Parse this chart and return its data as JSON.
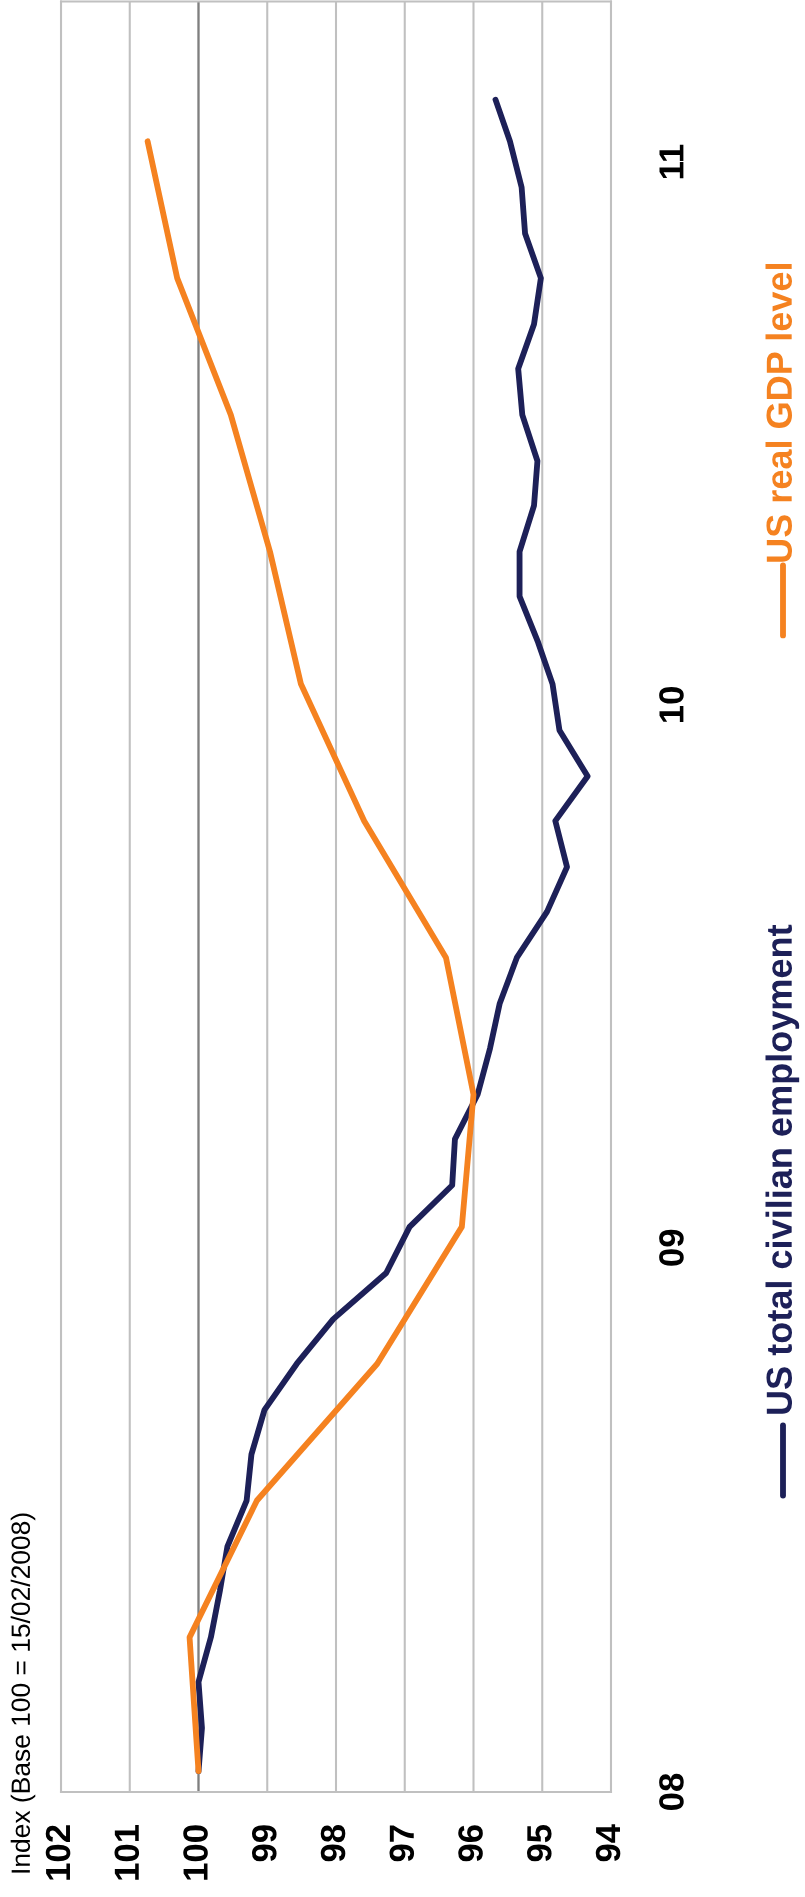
{
  "chart_data": {
    "type": "line",
    "orientation": "horizontal",
    "annotations": [
      "Index (Base 100 = 15/02/2008)"
    ],
    "xlim": [
      102,
      94
    ],
    "xticks": [
      102,
      101,
      100,
      99,
      98,
      97,
      96,
      95,
      94
    ],
    "ylim": [
      "2008-02-01",
      "2011-05-20"
    ],
    "yticks": [
      {
        "value": "2008-02-01",
        "label": "08"
      },
      {
        "value": "2009-02-01",
        "label": "09"
      },
      {
        "value": "2010-02-01",
        "label": "10"
      },
      {
        "value": "2011-02-01",
        "label": "11"
      }
    ],
    "grid": "x",
    "legend": "right",
    "line_style": "solid",
    "marker": "none",
    "ref_lines": [
      {
        "axis": "x",
        "value": 100,
        "color": "#7f7f7f"
      }
    ],
    "series": [
      {
        "name": "US total civilian employment",
        "color": "#1d2058",
        "x": [
          "2008-02-15",
          "2008-03-15",
          "2008-04-15",
          "2008-05-15",
          "2008-06-15",
          "2008-07-15",
          "2008-08-15",
          "2008-09-15",
          "2008-10-15",
          "2008-11-15",
          "2008-12-15",
          "2009-01-15",
          "2009-02-15",
          "2009-03-15",
          "2009-04-15",
          "2009-05-15",
          "2009-06-15",
          "2009-07-15",
          "2009-08-15",
          "2009-09-15",
          "2009-10-15",
          "2009-11-15",
          "2009-12-15",
          "2010-01-15",
          "2010-02-15",
          "2010-03-15",
          "2010-04-15",
          "2010-05-15",
          "2010-06-15",
          "2010-07-15",
          "2010-08-15",
          "2010-09-15",
          "2010-10-15",
          "2010-11-15",
          "2010-12-15",
          "2011-01-15",
          "2011-02-15",
          "2011-03-15"
        ],
        "values": [
          100.0,
          99.95,
          100.0,
          99.82,
          99.69,
          99.58,
          99.3,
          99.23,
          99.04,
          98.57,
          98.04,
          97.27,
          96.93,
          96.31,
          96.27,
          95.94,
          95.76,
          95.62,
          95.37,
          94.93,
          94.64,
          94.81,
          94.34,
          94.75,
          94.85,
          95.06,
          95.33,
          95.33,
          95.12,
          95.07,
          95.29,
          95.35,
          95.12,
          95.02,
          95.25,
          95.3,
          95.47,
          95.68
        ]
      },
      {
        "name": "US real GDP level",
        "color": "#f58220",
        "x": [
          "2008-02-15",
          "2008-05-15",
          "2008-08-15",
          "2008-11-15",
          "2009-02-15",
          "2009-05-15",
          "2009-08-15",
          "2009-11-15",
          "2010-02-15",
          "2010-05-15",
          "2010-08-15",
          "2010-11-15",
          "2011-02-15"
        ],
        "values": [
          100.0,
          100.13,
          99.15,
          97.4,
          96.17,
          96.0,
          96.4,
          97.59,
          98.51,
          98.96,
          99.53,
          100.31,
          100.74
        ]
      }
    ]
  }
}
